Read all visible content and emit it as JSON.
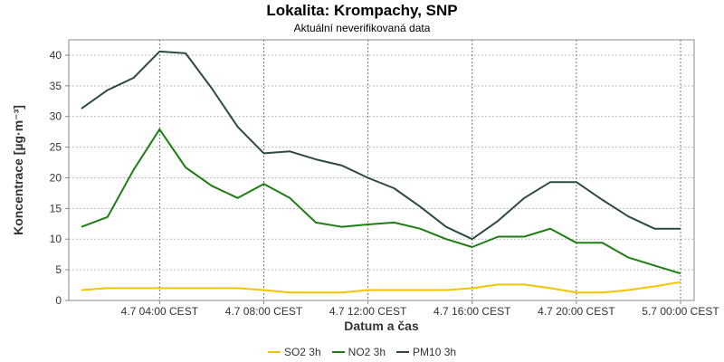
{
  "header": {
    "title": "Lokalita: Krompachy, SNP",
    "subtitle": "Aktuální neverifikovaná data"
  },
  "chart_data": {
    "type": "line",
    "xlabel": "Datum a čas",
    "ylabel": "Koncentrace [µg·m⁻³]",
    "ylim": [
      0,
      42.5
    ],
    "yticks": [
      0,
      5,
      10,
      15,
      20,
      25,
      30,
      35,
      40
    ],
    "x_ticks": [
      {
        "label": "4.7 04:00 CEST",
        "index": 3
      },
      {
        "label": "4.7 08:00 CEST",
        "index": 7
      },
      {
        "label": "4.7 12:00 CEST",
        "index": 11
      },
      {
        "label": "4.7 16:00 CEST",
        "index": 15
      },
      {
        "label": "4.7 20:00 CEST",
        "index": 19
      },
      {
        "label": "5.7 00:00 CEST",
        "index": 23
      }
    ],
    "x": [
      "4.7 01:00",
      "4.7 02:00",
      "4.7 03:00",
      "4.7 04:00",
      "4.7 05:00",
      "4.7 06:00",
      "4.7 07:00",
      "4.7 08:00",
      "4.7 09:00",
      "4.7 10:00",
      "4.7 11:00",
      "4.7 12:00",
      "4.7 13:00",
      "4.7 14:00",
      "4.7 15:00",
      "4.7 16:00",
      "4.7 17:00",
      "4.7 18:00",
      "4.7 19:00",
      "4.7 20:00",
      "4.7 21:00",
      "4.7 22:00",
      "4.7 23:00",
      "5.7 00:00"
    ],
    "grid": true,
    "legend_position": "bottom",
    "series": [
      {
        "name": "SO2 3h",
        "color": "#f5c400",
        "values": [
          1.7,
          2.0,
          2.0,
          2.0,
          2.0,
          2.0,
          2.0,
          1.7,
          1.3,
          1.3,
          1.3,
          1.7,
          1.7,
          1.7,
          1.7,
          2.0,
          2.6,
          2.6,
          2.0,
          1.3,
          1.3,
          1.7,
          2.3,
          3.0
        ]
      },
      {
        "name": "NO2 3h",
        "color": "#1e7d12",
        "values": [
          12.0,
          13.6,
          21.3,
          27.9,
          21.7,
          18.7,
          16.7,
          19.0,
          16.7,
          12.7,
          12.0,
          12.4,
          12.7,
          11.7,
          10.0,
          8.7,
          10.4,
          10.4,
          11.7,
          9.4,
          9.4,
          7.0,
          5.7,
          4.4
        ]
      },
      {
        "name": "PM10 3h",
        "color": "#2d4a40",
        "values": [
          31.3,
          34.3,
          36.3,
          40.6,
          40.3,
          34.6,
          28.3,
          24.0,
          24.3,
          23.0,
          22.0,
          20.0,
          18.3,
          15.3,
          12.0,
          10.0,
          13.0,
          16.7,
          19.3,
          19.3,
          16.4,
          13.7,
          11.7,
          11.7
        ]
      }
    ]
  }
}
